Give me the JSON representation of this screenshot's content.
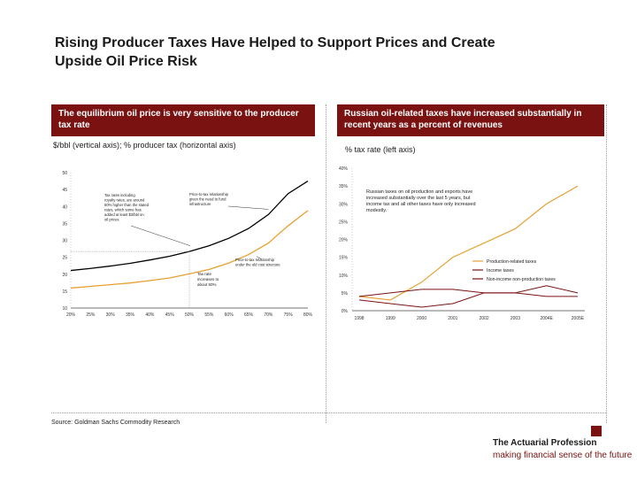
{
  "slide": {
    "title_line1": "Rising Producer Taxes Have Helped to Support Prices and Create",
    "title_line2": "Upside Oil Price Risk"
  },
  "left_panel": {
    "header": "The equilibrium oil price is very sensitive to the producer tax rate",
    "subtitle": "$/bbl (vertical axis); % producer tax (horizontal axis)"
  },
  "right_panel": {
    "header": "Russian oil-related taxes have increased substantially in recent years as a percent of revenues",
    "subtitle": "% tax rate (left axis)"
  },
  "source": "Source: Goldman Sachs Commodity Research",
  "logo": {
    "name": "The Actuarial Profession",
    "tagline": "making financial sense of the future",
    "color": "#7a1212"
  },
  "colors": {
    "accent": "#7a1212",
    "orange": "#e8a030",
    "dark": "#000000"
  },
  "chart_data": [
    {
      "type": "line",
      "x": [
        20,
        25,
        30,
        35,
        40,
        45,
        50,
        55,
        60,
        65,
        70,
        75,
        80
      ],
      "xticks": [
        "20%",
        "25%",
        "30%",
        "35%",
        "40%",
        "45%",
        "50%",
        "55%",
        "60%",
        "65%",
        "70%",
        "75%",
        "80%"
      ],
      "ylim": [
        10,
        50
      ],
      "yticks": [
        "50",
        "45",
        "40",
        "35",
        "30",
        "25",
        "20",
        "15",
        "10"
      ],
      "series": [
        {
          "name": "Price-to-tax relationship given the need to fund infrastructure",
          "color": "#000000",
          "values": [
            21.1,
            21.7,
            22.4,
            23.2,
            24.2,
            25.3,
            26.7,
            28.4,
            30.6,
            33.5,
            37.6,
            43.8,
            47.5
          ]
        },
        {
          "name": "Price-to-tax relationship under the old cost structure",
          "color": "#e8a030",
          "values": [
            15.9,
            16.4,
            16.9,
            17.4,
            18.1,
            18.9,
            20.1,
            21.4,
            23.3,
            25.8,
            29.2,
            34.3,
            38.8
          ]
        }
      ],
      "annotations": [
        {
          "id": "note_royalty",
          "text": "Tax rates including royalty rates, are around 50% higher than the stated rates, which some has added at least $3/bbl on oil prices"
        },
        {
          "id": "note_infra",
          "text": "Price-to-tax relationship given the need to fund infrastructure"
        },
        {
          "id": "note_old",
          "text": "Price-to-tax relationship under the old cost structure"
        },
        {
          "id": "note_tax",
          "text": "Tax rate increases to about 50%"
        }
      ]
    },
    {
      "type": "line",
      "categories": [
        "1998",
        "1999",
        "2000",
        "2001",
        "2002",
        "2003",
        "2004E",
        "2005E"
      ],
      "ylim": [
        0,
        40
      ],
      "yticks": [
        "40%",
        "35%",
        "30%",
        "25%",
        "20%",
        "15%",
        "10%",
        "5%",
        "0%"
      ],
      "legend_position": "center-right",
      "annotation": "Russian taxes on oil production and exports have increased substantially over the last 5 years, but income tax and all other taxes have only increased modestly.",
      "series": [
        {
          "name": "Production-related taxes",
          "color": "#e8a030",
          "values": [
            4,
            3,
            8,
            15,
            19,
            23,
            30,
            35
          ]
        },
        {
          "name": "Income taxes",
          "color": "#7a1212",
          "values": [
            3,
            2,
            1,
            2,
            5,
            5,
            4,
            4
          ]
        },
        {
          "name": "Non-income non-production taxes",
          "color": "#7a1212",
          "values": [
            4,
            5,
            6,
            6,
            5,
            5,
            7,
            5
          ]
        }
      ]
    }
  ]
}
